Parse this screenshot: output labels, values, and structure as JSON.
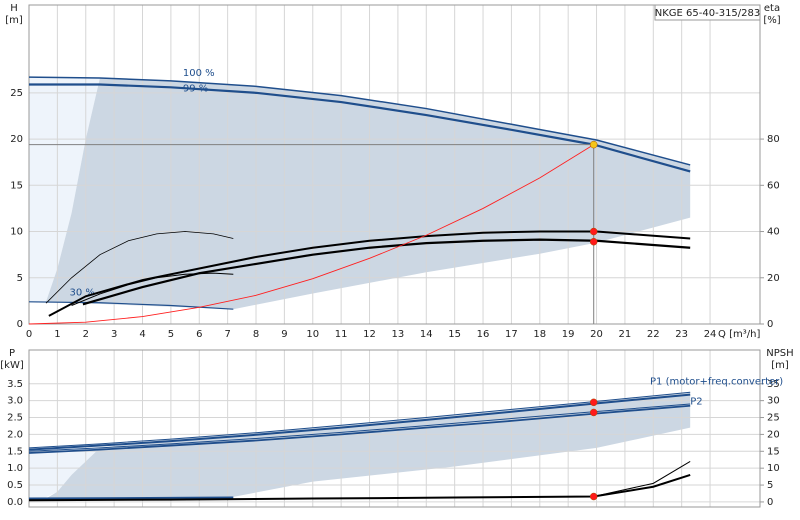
{
  "chart_data": [
    {
      "type": "line",
      "title": "NKGE 65-40-315/283",
      "ylabel": [
        "H",
        "[m]"
      ],
      "y2label": [
        "eta",
        "[%]"
      ],
      "xlabel": "Q [m³/h]",
      "xlim": [
        0,
        25.76
      ],
      "ylim": [
        0,
        34.5
      ],
      "y2lim": [
        0,
        138
      ],
      "grid": true,
      "show_xtick_labels": true,
      "xticks": [
        0,
        1,
        2,
        3,
        4,
        5,
        6,
        7,
        8,
        9,
        10,
        11,
        12,
        13,
        14,
        15,
        16,
        17,
        18,
        19,
        20,
        21,
        22,
        23,
        24
      ],
      "yticks": [
        0,
        5,
        10,
        15,
        20,
        25
      ],
      "y2ticks": [
        0,
        20,
        40,
        60,
        80
      ],
      "regions": [
        {
          "color": "#eef4fb",
          "x": [
            0,
            0.6,
            1,
            1.5,
            2,
            2.5,
            0
          ],
          "y": [
            2.4,
            2.4,
            6,
            12,
            20,
            26.6,
            26.6
          ]
        },
        {
          "color": "#ccd7e3",
          "x": [
            0.6,
            1,
            1.5,
            2,
            2.5,
            5,
            8,
            11,
            14,
            17,
            20,
            23.3,
            23.3,
            20,
            18,
            14,
            10,
            7.2
          ],
          "y": [
            2.4,
            6,
            12,
            20,
            26.6,
            26.3,
            25.7,
            24.7,
            23.3,
            21.6,
            19.9,
            17.2,
            11.5,
            8.8,
            7.6,
            5.6,
            3.3,
            1.6
          ]
        }
      ],
      "series": [
        {
          "label": "100 %",
          "color": "#1f4e8c",
          "width": 1.5,
          "x": [
            0,
            2.5,
            5,
            8,
            11,
            14,
            17,
            20,
            23.3
          ],
          "values": [
            26.7,
            26.6,
            26.3,
            25.7,
            24.7,
            23.3,
            21.6,
            19.9,
            17.2
          ]
        },
        {
          "label": "99 %",
          "color": "#1f4e8c",
          "width": 2.2,
          "x": [
            0,
            2.5,
            5,
            8,
            11,
            14,
            17,
            19.9,
            23.3
          ],
          "values": [
            25.9,
            25.9,
            25.6,
            25,
            24,
            22.6,
            21,
            19.4,
            16.5
          ]
        },
        {
          "label": "30 %",
          "color": "#1f4e8c",
          "width": 1.2,
          "x": [
            0,
            2.5,
            5,
            7.2
          ],
          "values": [
            2.4,
            2.3,
            2.0,
            1.6
          ]
        },
        {
          "axis": "y2",
          "color": "#000000",
          "width": 2,
          "x": [
            0.7,
            2,
            4,
            6,
            8,
            10,
            12,
            14,
            16,
            18,
            20,
            23.3
          ],
          "values": [
            3.5,
            12,
            19,
            24,
            29,
            33,
            36,
            38,
            39.5,
            40,
            40,
            37
          ]
        },
        {
          "axis": "y2",
          "color": "#000000",
          "width": 2.2,
          "x": [
            1.9,
            4,
            6,
            8,
            10,
            12,
            14,
            16,
            18,
            20,
            23.3
          ],
          "values": [
            8.5,
            16,
            22,
            26,
            30,
            33,
            35,
            36,
            36.5,
            36,
            33
          ]
        },
        {
          "axis": "y2",
          "color": "#000000",
          "width": 0.8,
          "x": [
            0.6,
            1.5,
            2.5,
            3.5,
            4.5,
            5.5,
            6.5,
            7.2
          ],
          "values": [
            9,
            20,
            30,
            36,
            39,
            40,
            39,
            37
          ]
        },
        {
          "axis": "y2",
          "color": "#000000",
          "width": 1,
          "x": [
            1.5,
            2.5,
            3.5,
            4.5,
            5.5,
            6.5,
            7.2
          ],
          "values": [
            8,
            13,
            17,
            20,
            21.5,
            22,
            21.5
          ]
        },
        {
          "color": "#ff2020",
          "width": 0.9,
          "x": [
            0,
            2,
            4,
            6,
            8,
            10,
            12,
            14,
            16,
            18,
            19.9
          ],
          "values": [
            0,
            0.2,
            0.8,
            1.8,
            3.1,
            4.9,
            7.1,
            9.6,
            12.5,
            15.8,
            19.4
          ]
        }
      ],
      "markers": [
        {
          "x": 19.9,
          "y": 19.4,
          "color": "#f5c518",
          "guide": true
        },
        {
          "x": 19.9,
          "y": 40,
          "axis": "y2",
          "color": "#ff1a1a"
        },
        {
          "x": 19.9,
          "y": 35.6,
          "axis": "y2",
          "color": "#ff1a1a"
        }
      ]
    },
    {
      "type": "line",
      "ylabel": [
        "P",
        "[kW]"
      ],
      "y2label": [
        "NPSH",
        "[m]"
      ],
      "xlim": [
        0,
        25.76
      ],
      "ylim": [
        -0.15,
        4.5
      ],
      "y2lim": [
        -1.5,
        45
      ],
      "grid": true,
      "show_xtick_labels": false,
      "xticks": [
        0,
        1,
        2,
        3,
        4,
        5,
        6,
        7,
        8,
        9,
        10,
        11,
        12,
        13,
        14,
        15,
        16,
        17,
        18,
        19,
        20,
        21,
        22,
        23,
        24
      ],
      "yticks": [
        {
          "value": 0,
          "label": "0.0"
        },
        {
          "value": 0.5,
          "label": "0.5"
        },
        {
          "value": 1,
          "label": "1.0"
        },
        {
          "value": 1.5,
          "label": "1.5"
        },
        {
          "value": 2,
          "label": "2.0"
        },
        {
          "value": 2.5,
          "label": "2.5"
        },
        {
          "value": 3,
          "label": "3.0"
        },
        {
          "value": 3.5,
          "label": "3.5"
        }
      ],
      "y2ticks": [
        0,
        5,
        10,
        15,
        20,
        25,
        30,
        35
      ],
      "regions": [
        {
          "color": "#eef4fb",
          "x": [
            0,
            0.5,
            1,
            1.5,
            2.5,
            0
          ],
          "y": [
            0.1,
            0.1,
            0.3,
            0.8,
            1.6,
            1.6
          ]
        },
        {
          "color": "#ccd7e3",
          "x": [
            0.5,
            1,
            1.5,
            2.5,
            5,
            8,
            11,
            14,
            17,
            20,
            23.3,
            23.3,
            20,
            15,
            10,
            7.2
          ],
          "y": [
            0.05,
            0.3,
            0.8,
            1.6,
            1.86,
            2.05,
            2.27,
            2.5,
            2.74,
            2.98,
            3.25,
            2.2,
            1.6,
            1.05,
            0.6,
            0.15
          ]
        }
      ],
      "series": [
        {
          "color": "#1f4e8c",
          "width": 1,
          "x": [
            0,
            2.5,
            5,
            8,
            11,
            14,
            17,
            20,
            23.3
          ],
          "values": [
            1.6,
            1.72,
            1.86,
            2.05,
            2.27,
            2.5,
            2.74,
            2.98,
            3.25
          ]
        },
        {
          "label": "P1 (motor+freq.converter)",
          "color": "#1f4e8c",
          "width": 2,
          "x": [
            0,
            2.5,
            5,
            8,
            11,
            14,
            17,
            20,
            23.3
          ],
          "values": [
            1.55,
            1.67,
            1.8,
            1.99,
            2.2,
            2.43,
            2.67,
            2.92,
            3.18
          ]
        },
        {
          "color": "#1f4e8c",
          "width": 1,
          "x": [
            0,
            2.5,
            5,
            8,
            11,
            14,
            17,
            20,
            23.3
          ],
          "values": [
            1.5,
            1.6,
            1.72,
            1.88,
            2.06,
            2.26,
            2.47,
            2.68,
            2.9
          ]
        },
        {
          "label": "P2",
          "color": "#1f4e8c",
          "width": 1.8,
          "x": [
            0,
            2.5,
            5,
            8,
            11,
            14,
            17,
            20,
            23.3
          ],
          "values": [
            1.45,
            1.55,
            1.67,
            1.82,
            2.0,
            2.2,
            2.4,
            2.62,
            2.85
          ]
        },
        {
          "color": "#1f4e8c",
          "width": 2,
          "x": [
            0,
            2.5,
            5,
            7.2
          ],
          "values": [
            0.1,
            0.11,
            0.12,
            0.13
          ]
        },
        {
          "axis": "y2",
          "color": "#000000",
          "width": 2,
          "x": [
            0,
            5,
            10,
            15,
            19.9,
            22,
            23.3
          ],
          "values": [
            0.5,
            0.7,
            1.0,
            1.3,
            1.6,
            4.5,
            8
          ]
        },
        {
          "axis": "y2",
          "color": "#000000",
          "width": 1,
          "x": [
            19.9,
            22,
            23.3
          ],
          "values": [
            1.6,
            5.5,
            12
          ]
        }
      ],
      "markers": [
        {
          "x": 19.9,
          "y": 2.95,
          "color": "#ff1a1a"
        },
        {
          "x": 19.9,
          "y": 2.65,
          "color": "#ff1a1a"
        },
        {
          "x": 19.9,
          "y": 1.6,
          "axis": "y2",
          "color": "#ff1a1a"
        }
      ]
    }
  ]
}
